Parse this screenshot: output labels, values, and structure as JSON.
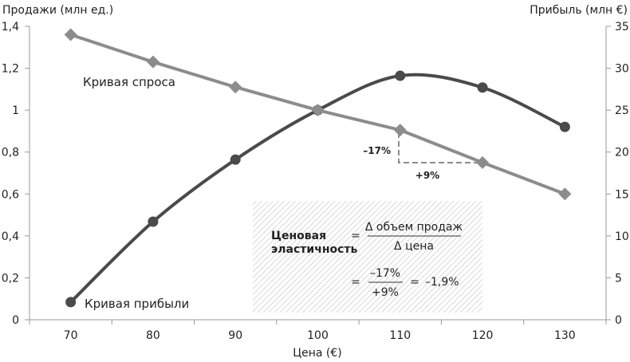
{
  "chart_data": {
    "type": "line",
    "x": [
      70,
      80,
      90,
      100,
      110,
      120,
      130
    ],
    "xlabel": "Цена (€)",
    "xlim": [
      65,
      135
    ],
    "x_ticks": [
      "70",
      "80",
      "90",
      "100",
      "110",
      "120",
      "130"
    ],
    "ylabel_left": "Продажи (млн ед.)",
    "ylim_left": [
      0,
      1.4
    ],
    "y_ticks_left": [
      "0",
      "0,2",
      "0,4",
      "0,6",
      "0,8",
      "1",
      "1,2",
      "1,4"
    ],
    "ylabel_right": "Прибыль (млн €)",
    "ylim_right": [
      0,
      35
    ],
    "y_ticks_right": [
      "0",
      "5",
      "10",
      "15",
      "20",
      "25",
      "30",
      "35"
    ],
    "series": [
      {
        "name": "Кривая спроса",
        "axis": "left",
        "marker": "diamond",
        "color": "#8c8c8c",
        "values": [
          1.36,
          1.23,
          1.11,
          1.0,
          0.905,
          0.75,
          0.6
        ]
      },
      {
        "name": "Кривая прибыли",
        "axis": "right",
        "marker": "circle",
        "color": "#4a4a4a",
        "values": [
          2.1,
          11.7,
          19.1,
          25.0,
          29.1,
          27.7,
          23.0
        ]
      }
    ],
    "annotations": {
      "drop_label": "–17%",
      "rise_label": "+9%",
      "formula": {
        "term_line1": "Ценовая",
        "term_line2": "эластичность",
        "eq1": "=",
        "numerator": "Δ объем продаж",
        "denominator": "Δ цена",
        "eq2": "=",
        "num2": "–17%",
        "den2": "+9%",
        "eq3": "=",
        "result": "–1,9%"
      }
    }
  }
}
